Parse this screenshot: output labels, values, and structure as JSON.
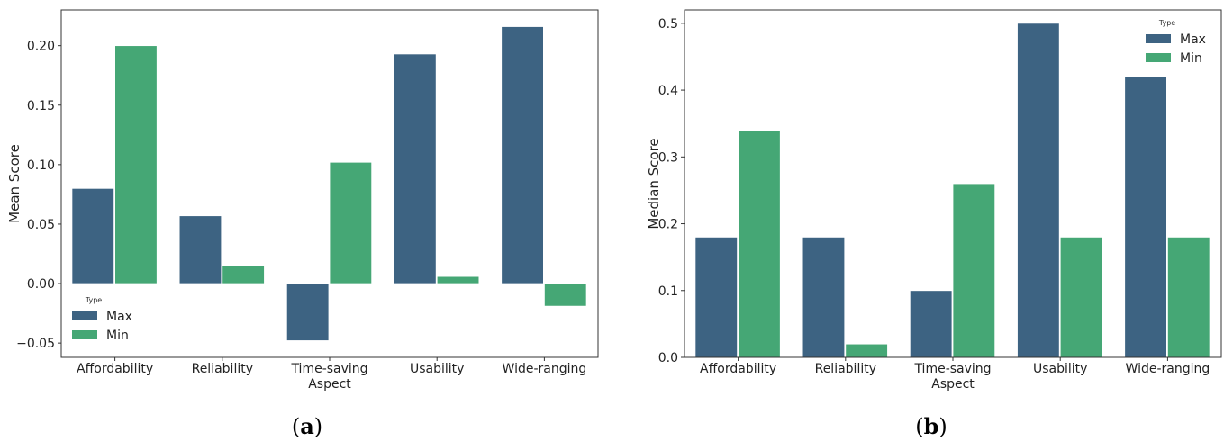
{
  "colors": {
    "max": "#3d6382",
    "min": "#45a775",
    "frame": "#333333"
  },
  "chart_data": [
    {
      "type": "bar",
      "caption": "a",
      "ylabel": "Mean Score",
      "xlabel": "",
      "categories": [
        "Affordability",
        "Reliability",
        "Time-saving\nAspect",
        "Usability",
        "Wide-ranging"
      ],
      "series": [
        {
          "name": "Max",
          "values": [
            0.08,
            0.057,
            -0.048,
            0.193,
            0.216
          ]
        },
        {
          "name": "Min",
          "values": [
            0.2,
            0.015,
            0.102,
            0.006,
            -0.019
          ]
        }
      ],
      "ylim": [
        -0.062,
        0.23
      ],
      "yticks": [
        "0.20",
        "0.15",
        "0.10",
        "0.05",
        "0.00",
        "−0.05"
      ],
      "legend_title": "Type",
      "legend_position": "lower-left",
      "grid": false
    },
    {
      "type": "bar",
      "caption": "b",
      "ylabel": "Median Score",
      "xlabel": "",
      "categories": [
        "Affordability",
        "Reliability",
        "Time-saving\nAspect",
        "Usability",
        "Wide-ranging"
      ],
      "series": [
        {
          "name": "Max",
          "values": [
            0.18,
            0.18,
            0.1,
            0.5,
            0.42
          ]
        },
        {
          "name": "Min",
          "values": [
            0.34,
            0.02,
            0.26,
            0.18,
            0.18
          ]
        }
      ],
      "ylim": [
        0.0,
        0.52
      ],
      "yticks": [
        "0.5",
        "0.4",
        "0.3",
        "0.2",
        "0.1",
        "0.0"
      ],
      "legend_title": "Type",
      "legend_position": "upper-right",
      "grid": false
    }
  ]
}
